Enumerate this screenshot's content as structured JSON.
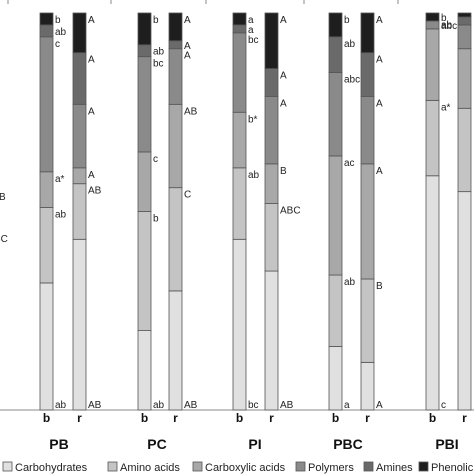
{
  "chart_data": {
    "type": "bar",
    "stacked": true,
    "percent": true,
    "legend_position": "bottom",
    "grid": false,
    "groups": [
      "PB",
      "PC",
      "PI",
      "PBC",
      "PBI"
    ],
    "bar_categories": [
      "b",
      "r"
    ],
    "series": [
      {
        "name": "Carbohydrates",
        "color": "#e0e0e0"
      },
      {
        "name": "Amino acids",
        "color": "#c4c4c4"
      },
      {
        "name": "Carboxylic acids",
        "color": "#a8a8a8"
      },
      {
        "name": "Polymers",
        "color": "#8a8a8a"
      },
      {
        "name": "Amines",
        "color": "#6a6a6a"
      },
      {
        "name": "Phenolic",
        "color": "#1e1e1e"
      }
    ],
    "bars": [
      {
        "group": "PB",
        "category": "b",
        "values": [
          32,
          19,
          9,
          34,
          3,
          3
        ],
        "labels": [
          "ab",
          "ab",
          "a*",
          "c",
          "ab",
          "b"
        ]
      },
      {
        "group": "PB",
        "category": "r",
        "values": [
          43,
          14,
          4,
          16,
          13,
          10
        ],
        "labels": [
          "AB",
          "AB",
          "A",
          "A",
          "A",
          "A"
        ]
      },
      {
        "group": "PC",
        "category": "b",
        "values": [
          20,
          30,
          15,
          24,
          3,
          8
        ],
        "labels": [
          "ab",
          "b",
          "c",
          "bc",
          "ab",
          "b"
        ]
      },
      {
        "group": "PC",
        "category": "r",
        "values": [
          30,
          26,
          21,
          14,
          2,
          7
        ],
        "labels": [
          "AB",
          "C",
          "AB",
          "A",
          "A",
          "A"
        ]
      },
      {
        "group": "PI",
        "category": "b",
        "values": [
          43,
          18,
          14,
          20,
          2,
          3
        ],
        "labels": [
          "bc",
          "ab",
          "b*",
          "bc",
          "a",
          "a"
        ]
      },
      {
        "group": "PI",
        "category": "r",
        "values": [
          35,
          17,
          10,
          17,
          7,
          14
        ],
        "labels": [
          "AB",
          "ABC",
          "B",
          "A",
          "A",
          "A"
        ]
      },
      {
        "group": "PBC",
        "category": "b",
        "values": [
          16,
          18,
          30,
          21,
          9,
          6
        ],
        "labels": [
          "a",
          "ab",
          "ac",
          "abc",
          "ab",
          "b"
        ]
      },
      {
        "group": "PBC",
        "category": "r",
        "values": [
          12,
          21,
          29,
          17,
          11,
          10
        ],
        "labels": [
          "A",
          "B",
          "A",
          "A",
          "A",
          "A"
        ]
      },
      {
        "group": "PBI",
        "category": "b",
        "values": [
          59,
          19,
          18,
          2,
          0,
          2
        ],
        "labels": [
          "c",
          "a*",
          "",
          "abc",
          "ab",
          "b"
        ]
      },
      {
        "group": "PBI",
        "category": "r",
        "values": [
          55,
          21,
          15,
          6,
          2,
          1
        ],
        "labels": [
          "",
          "",
          "",
          "",
          "",
          ""
        ]
      }
    ],
    "left_cut_labels": [
      "B",
      "BC"
    ]
  }
}
